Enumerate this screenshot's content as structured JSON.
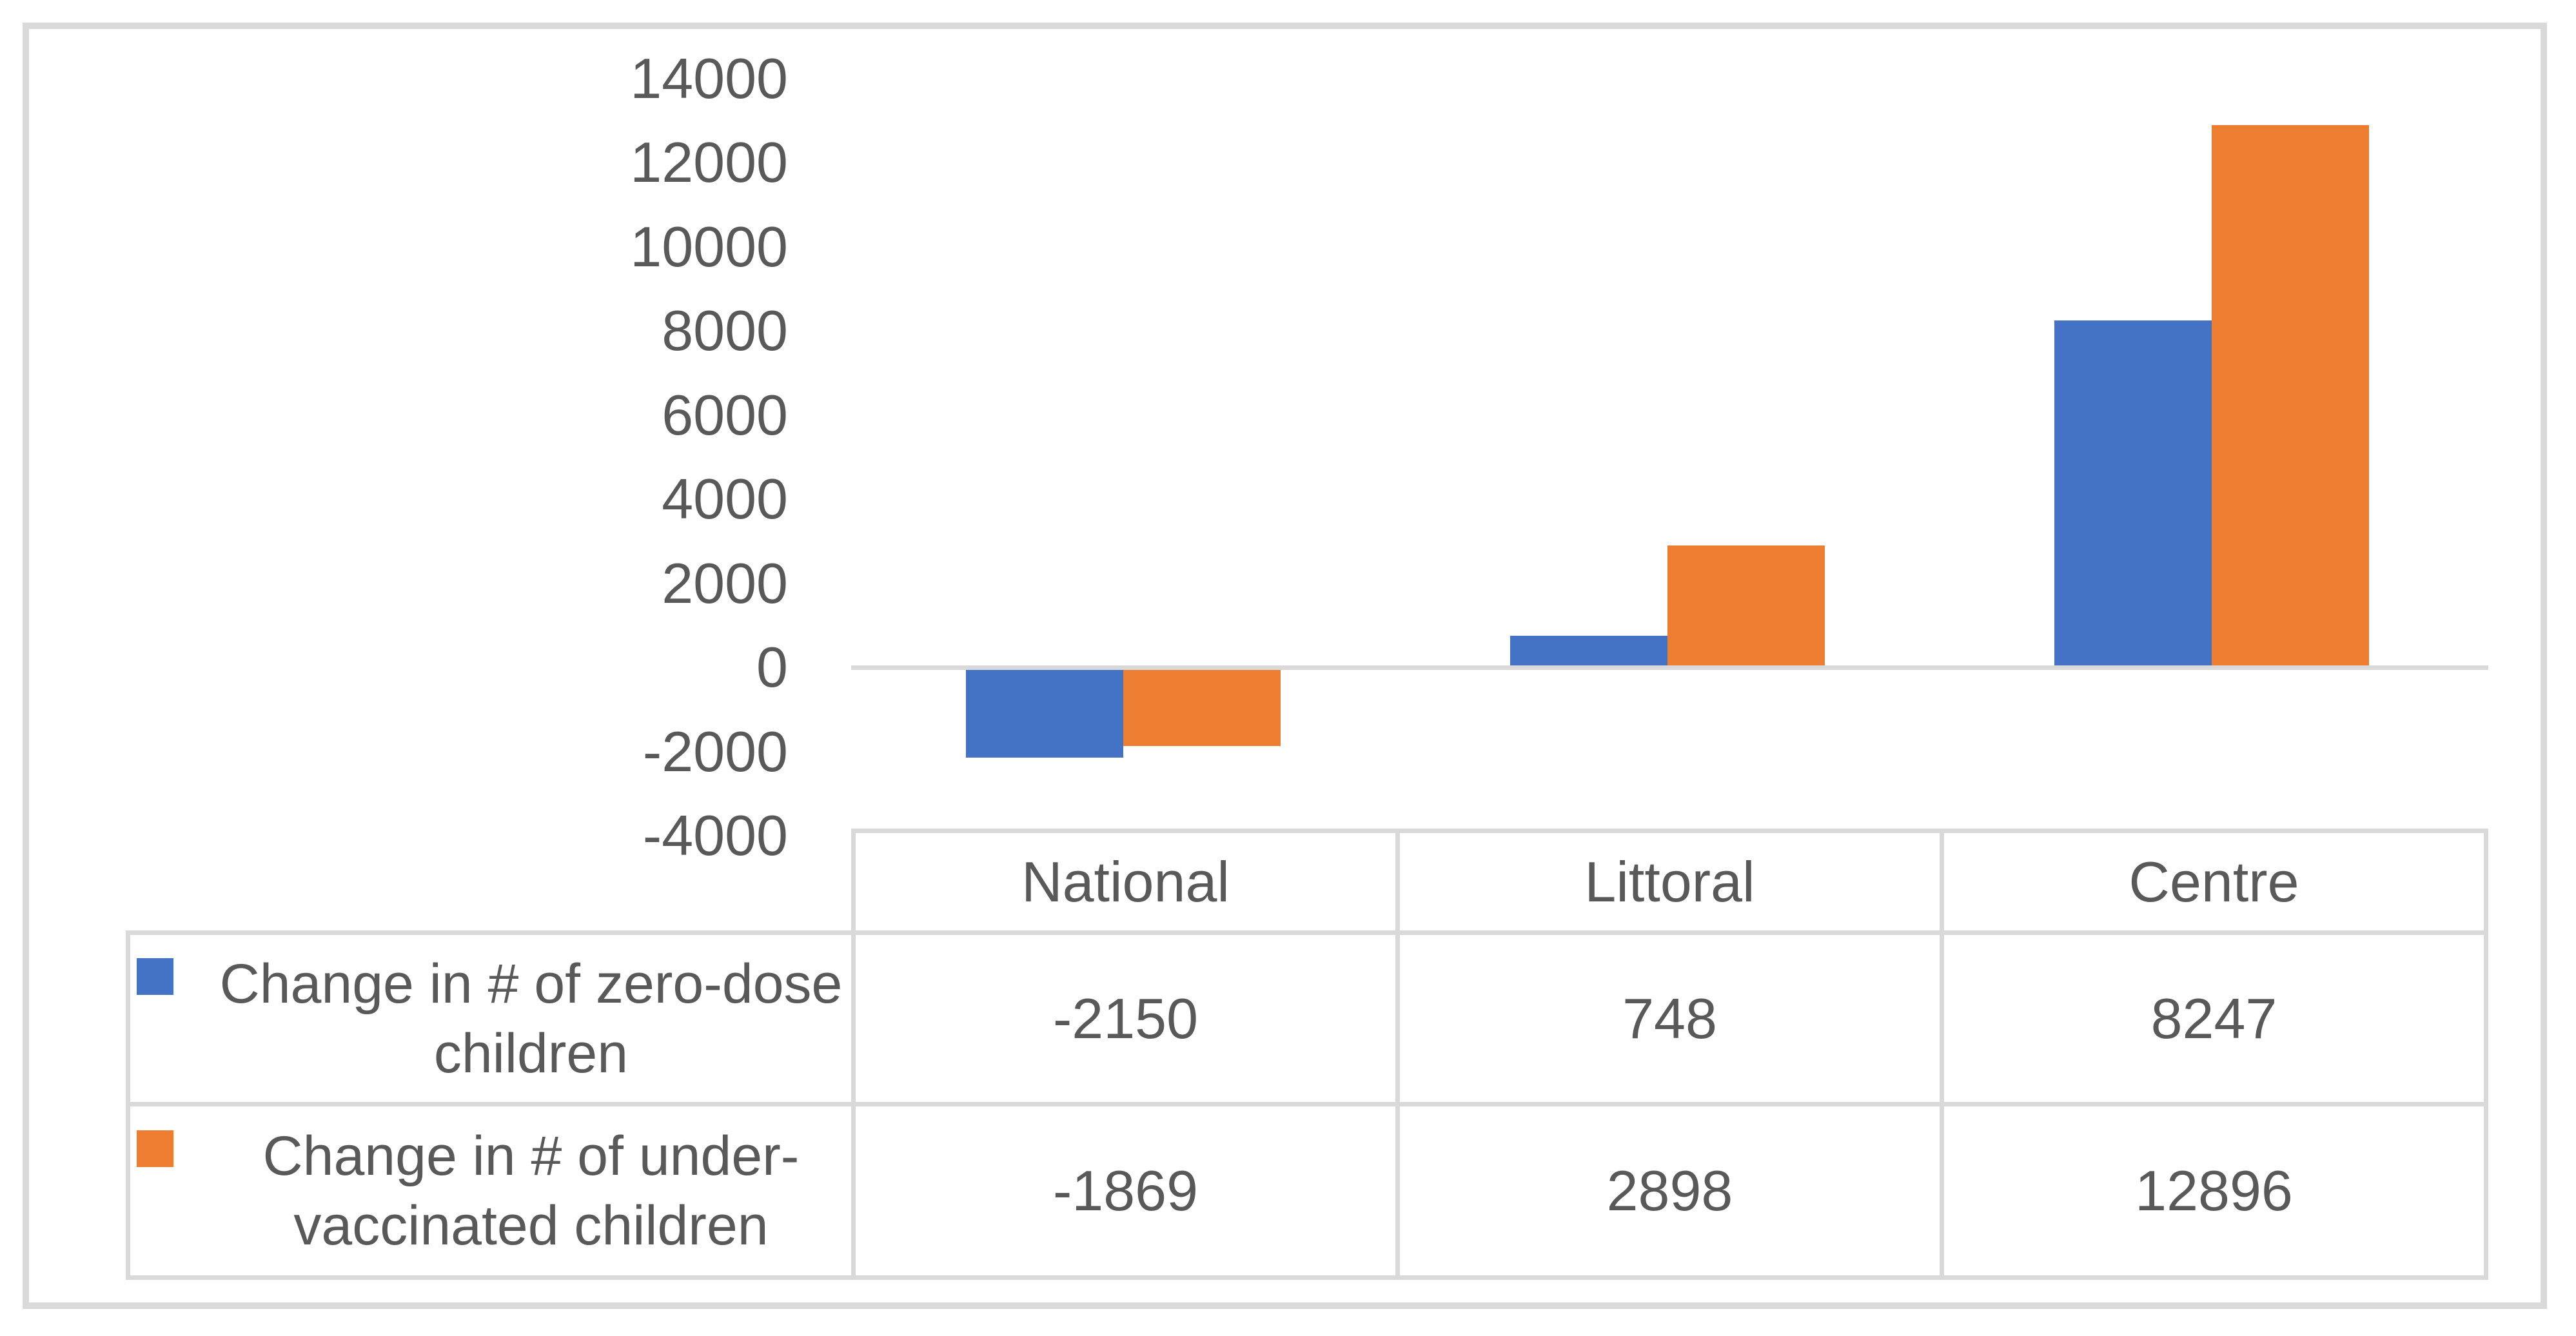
{
  "colors": {
    "series_zero_dose": "#4472C4",
    "series_under_vaccinated": "#ED7D31",
    "text": "#595959",
    "frame_border": "#D9D9D9",
    "table_border": "#D9D9D9",
    "axis_line": "#D9D9D9"
  },
  "chart_data": {
    "type": "bar",
    "title": "",
    "xlabel": "",
    "ylabel": "",
    "categories": [
      "National",
      "Littoral",
      "Centre"
    ],
    "series": [
      {
        "name": "Change in # of zero-dose children",
        "label_lines": [
          "Change in # of zero-dose",
          "children"
        ],
        "color": "#4472C4",
        "values": [
          -2150,
          748,
          8247
        ]
      },
      {
        "name": "Change in # of under-vaccinated children",
        "label_lines": [
          "Change in # of under-",
          "vaccinated children"
        ],
        "color": "#ED7D31",
        "values": [
          -1869,
          2898,
          12896
        ]
      }
    ],
    "y_axis": {
      "min": -4000,
      "max": 14000,
      "step": 2000
    },
    "ylim": [
      -4000,
      14000
    ],
    "grid": "off",
    "legend_position": "data-table-left",
    "data_table": true
  },
  "table": {
    "column_headers": [
      "National",
      "Littoral",
      "Centre"
    ],
    "rows": [
      {
        "label": "Change in # of zero-dose children",
        "values": [
          "-2150",
          "748",
          "8247"
        ]
      },
      {
        "label": "Change in # of under-vaccinated children",
        "values": [
          "-1869",
          "2898",
          "12896"
        ]
      }
    ]
  }
}
